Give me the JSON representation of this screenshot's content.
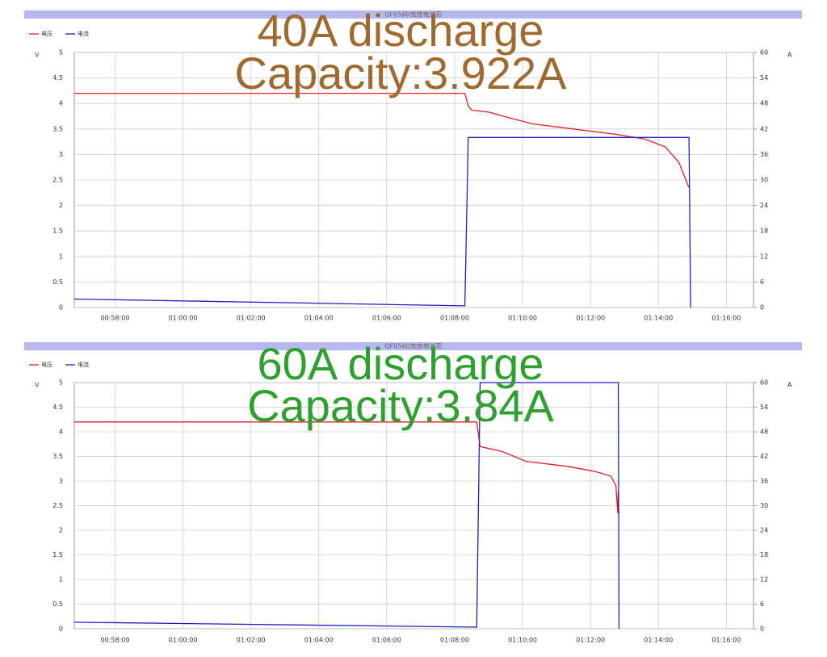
{
  "chart_data": [
    {
      "type": "line",
      "title": "QF0560充放电波形",
      "annotations": [
        "40A discharge",
        "Capacity:3.922A"
      ],
      "annotation_color": "#a0692e",
      "y_unit": "V",
      "y2_unit": "A",
      "legend": "top-left",
      "grid": true,
      "x": [
        56.8,
        68.3,
        68.4,
        68.5,
        69.0,
        69.6,
        70.3,
        71.5,
        72.7,
        73.6,
        74.2,
        74.6,
        74.9,
        74.95
      ],
      "xlim": [
        56.8,
        76.8
      ],
      "xticks": [
        {
          "value": 58,
          "label": "00:58:00"
        },
        {
          "value": 60,
          "label": "01:00:00"
        },
        {
          "value": 62,
          "label": "01:02:00"
        },
        {
          "value": 64,
          "label": "01:04:00"
        },
        {
          "value": 66,
          "label": "01:06:00"
        },
        {
          "value": 68,
          "label": "01:08:00"
        },
        {
          "value": 70,
          "label": "01:10:00"
        },
        {
          "value": 72,
          "label": "01:12:00"
        },
        {
          "value": 74,
          "label": "01:14:00"
        },
        {
          "value": 76,
          "label": "01:16:00"
        }
      ],
      "ylim": [
        0,
        5
      ],
      "yticks": [
        0,
        0.5,
        1,
        1.5,
        2,
        2.5,
        3,
        3.5,
        4,
        4.5,
        5
      ],
      "y2lim": [
        0,
        60
      ],
      "y2ticks": [
        0,
        6,
        12,
        18,
        24,
        30,
        36,
        42,
        48,
        54,
        60
      ],
      "series": [
        {
          "name": "电压",
          "color": "#e02020",
          "values": [
            4.2,
            4.2,
            3.95,
            3.87,
            3.83,
            3.72,
            3.6,
            3.5,
            3.4,
            3.3,
            3.15,
            2.85,
            2.35,
            null
          ]
        },
        {
          "name": "电流",
          "color": "#2020c0",
          "axis": "y2",
          "values": [
            2,
            0.4,
            40,
            40,
            40,
            40,
            40,
            40,
            40,
            40,
            40,
            40,
            40,
            0
          ]
        }
      ]
    },
    {
      "type": "line",
      "title": "QF0560充放电波形",
      "annotations": [
        "60A discharge",
        "Capacity:3.84A"
      ],
      "annotation_color": "#2ea02e",
      "y_unit": "V",
      "y2_unit": "A",
      "legend": "top-left",
      "grid": true,
      "x": [
        56.8,
        68.65,
        68.75,
        69.4,
        70.1,
        71.3,
        72.1,
        72.6,
        72.75,
        72.8,
        72.82,
        72.84
      ],
      "xlim": [
        56.8,
        76.8
      ],
      "xticks": [
        {
          "value": 58,
          "label": "00:58:00"
        },
        {
          "value": 60,
          "label": "01:00:00"
        },
        {
          "value": 62,
          "label": "01:02:00"
        },
        {
          "value": 64,
          "label": "01:04:00"
        },
        {
          "value": 66,
          "label": "01:06:00"
        },
        {
          "value": 68,
          "label": "01:08:00"
        },
        {
          "value": 70,
          "label": "01:10:00"
        },
        {
          "value": 72,
          "label": "01:12:00"
        },
        {
          "value": 74,
          "label": "01:14:00"
        },
        {
          "value": 76,
          "label": "01:16:00"
        }
      ],
      "ylim": [
        0,
        5
      ],
      "yticks": [
        0,
        0.5,
        1,
        1.5,
        2,
        2.5,
        3,
        3.5,
        4,
        4.5,
        5
      ],
      "y2lim": [
        0,
        60
      ],
      "y2ticks": [
        0,
        6,
        12,
        18,
        24,
        30,
        36,
        42,
        48,
        54,
        60
      ],
      "series": [
        {
          "name": "电压",
          "color": "#e02020",
          "values": [
            4.2,
            4.2,
            3.7,
            3.6,
            3.4,
            3.3,
            3.2,
            3.1,
            2.9,
            2.35,
            2.8,
            null
          ]
        },
        {
          "name": "电流",
          "color": "#2020c0",
          "axis": "y2",
          "values": [
            1.6,
            0.4,
            60,
            60,
            60,
            60,
            60,
            60,
            60,
            60,
            60,
            0
          ]
        }
      ]
    }
  ]
}
